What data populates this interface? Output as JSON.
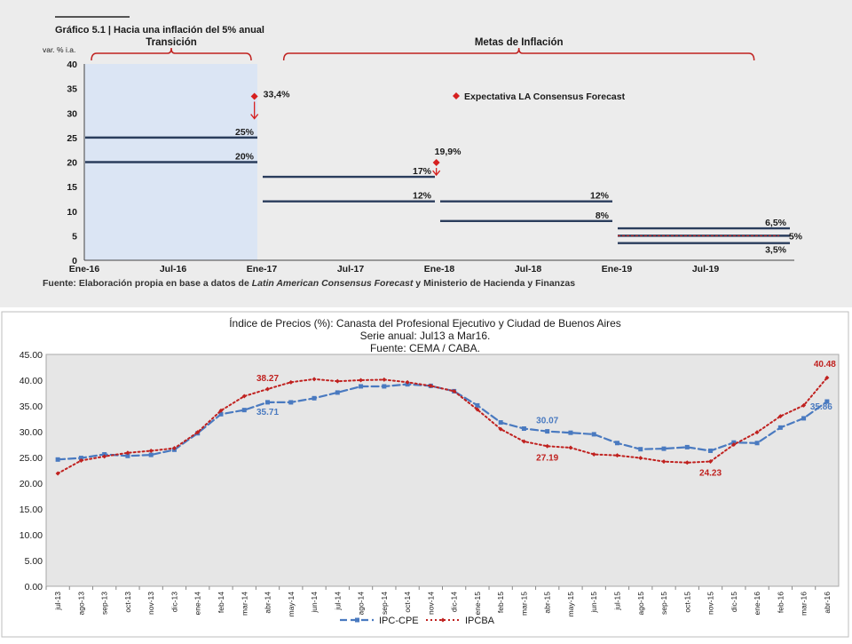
{
  "chart_data": [
    {
      "type": "line",
      "title": "Gráfico 5.1 | Hacia una inflación del 5% anual",
      "ylabel": "var. % i.a.",
      "ylim": [
        0,
        40
      ],
      "yticks": [
        0,
        5,
        10,
        15,
        20,
        25,
        30,
        35,
        40
      ],
      "xticks": [
        "Ene-16",
        "Jul-16",
        "Ene-17",
        "Jul-17",
        "Ene-18",
        "Jul-18",
        "Ene-19",
        "Jul-19"
      ],
      "periods": [
        {
          "label": "Transición",
          "start": 0,
          "end": 12
        },
        {
          "label": "Metas de Inflación",
          "start": 13,
          "end": 46
        }
      ],
      "shaded_range": [
        0,
        12
      ],
      "target_lines": [
        {
          "start": 0,
          "end": 12,
          "value": 25,
          "label": "25%"
        },
        {
          "start": 0,
          "end": 12,
          "value": 20,
          "label": "20%"
        },
        {
          "start": 12,
          "end": 24,
          "value": 17,
          "label": "17%"
        },
        {
          "start": 12,
          "end": 24,
          "value": 12,
          "label": "12%"
        },
        {
          "start": 24,
          "end": 36,
          "value": 12,
          "label": "12%"
        },
        {
          "start": 24,
          "end": 36,
          "value": 8,
          "label": "8%"
        },
        {
          "start": 36,
          "end": 48,
          "value": 6.5,
          "label": "6,5%"
        },
        {
          "start": 36,
          "end": 48,
          "value": 5,
          "label": "5%",
          "center": true
        },
        {
          "start": 36,
          "end": 48,
          "value": 3.5,
          "label": "3,5%"
        }
      ],
      "expectations": [
        {
          "x": 11.5,
          "value": 33.4,
          "label": "33,4%",
          "arrow_to": 28.5
        },
        {
          "x": 23.8,
          "value": 19.9,
          "label": "19,9%",
          "arrow_to": 17
        }
      ],
      "legend": [
        "Expectativa LA Consensus Forecast"
      ],
      "legend_placement": "upper-right",
      "source": "Fuente: Elaboración propia en base a datos de ",
      "source_italic": "Latin American Consensus Forecast",
      "source_end": " y Ministerio de Hacienda y Finanzas",
      "colors": {
        "target": "#2a3d5c",
        "expectation": "#d6201f",
        "shade": "#dbe5f4"
      }
    },
    {
      "type": "line",
      "title": "Índice de Precios (%): Canasta del Profesional Ejecutivo y Ciudad de Buenos Aires",
      "subtitle": "Serie anual: Jul13 a Mar16.",
      "subtitle2": "Fuente: CEMA / CABA.",
      "ylim": [
        0,
        45
      ],
      "yticks": [
        "0.00",
        "5.00",
        "10.00",
        "15.00",
        "20.00",
        "25.00",
        "30.00",
        "35.00",
        "40.00",
        "45.00"
      ],
      "categories": [
        "jul-13",
        "ago-13",
        "sep-13",
        "oct-13",
        "nov-13",
        "dic-13",
        "ene-14",
        "feb-14",
        "mar-14",
        "abr-14",
        "may-14",
        "jun-14",
        "jul-14",
        "ago-14",
        "sep-14",
        "oct-14",
        "nov-14",
        "dic-14",
        "ene-15",
        "feb-15",
        "mar-15",
        "abr-15",
        "may-15",
        "jun-15",
        "jul-15",
        "ago-15",
        "sep-15",
        "oct-15",
        "nov-15",
        "dic-15",
        "ene-16",
        "feb-16",
        "mar-16",
        "abr-16"
      ],
      "series": [
        {
          "name": "IPC-CPE",
          "color": "#4a7ac0",
          "style": "dashed-square",
          "values": [
            24.6,
            24.9,
            25.6,
            25.3,
            25.5,
            26.5,
            29.7,
            33.4,
            34.2,
            35.71,
            35.7,
            36.5,
            37.6,
            38.8,
            38.8,
            39.2,
            38.9,
            37.86,
            35.1,
            31.8,
            30.6,
            30.07,
            29.8,
            29.5,
            27.8,
            26.6,
            26.7,
            27.0,
            26.3,
            27.9,
            27.8,
            30.8,
            32.6,
            35.86
          ],
          "labels": [
            {
              "index": 9,
              "text": "35.71"
            },
            {
              "index": 21,
              "text": "30.07"
            },
            {
              "index": 33,
              "text": "35.86"
            }
          ]
        },
        {
          "name": "IPCBA",
          "color": "#c0211f",
          "style": "dotted-diamond",
          "values": [
            21.9,
            24.4,
            25.2,
            25.9,
            26.3,
            26.8,
            29.9,
            34.1,
            36.9,
            38.27,
            39.6,
            40.2,
            39.8,
            40.0,
            40.1,
            39.6,
            38.9,
            37.86,
            34.3,
            30.5,
            28.1,
            27.19,
            26.9,
            25.6,
            25.4,
            24.9,
            24.2,
            24.0,
            24.23,
            27.5,
            29.9,
            33.0,
            35.1,
            40.48
          ],
          "labels": [
            {
              "index": 9,
              "text": "38.27"
            },
            {
              "index": 21,
              "text": "27.19"
            },
            {
              "index": 28,
              "text": "24.23"
            },
            {
              "index": 33,
              "text": "40.48"
            }
          ]
        }
      ],
      "legend_placement": "bottom",
      "grid": false
    }
  ]
}
